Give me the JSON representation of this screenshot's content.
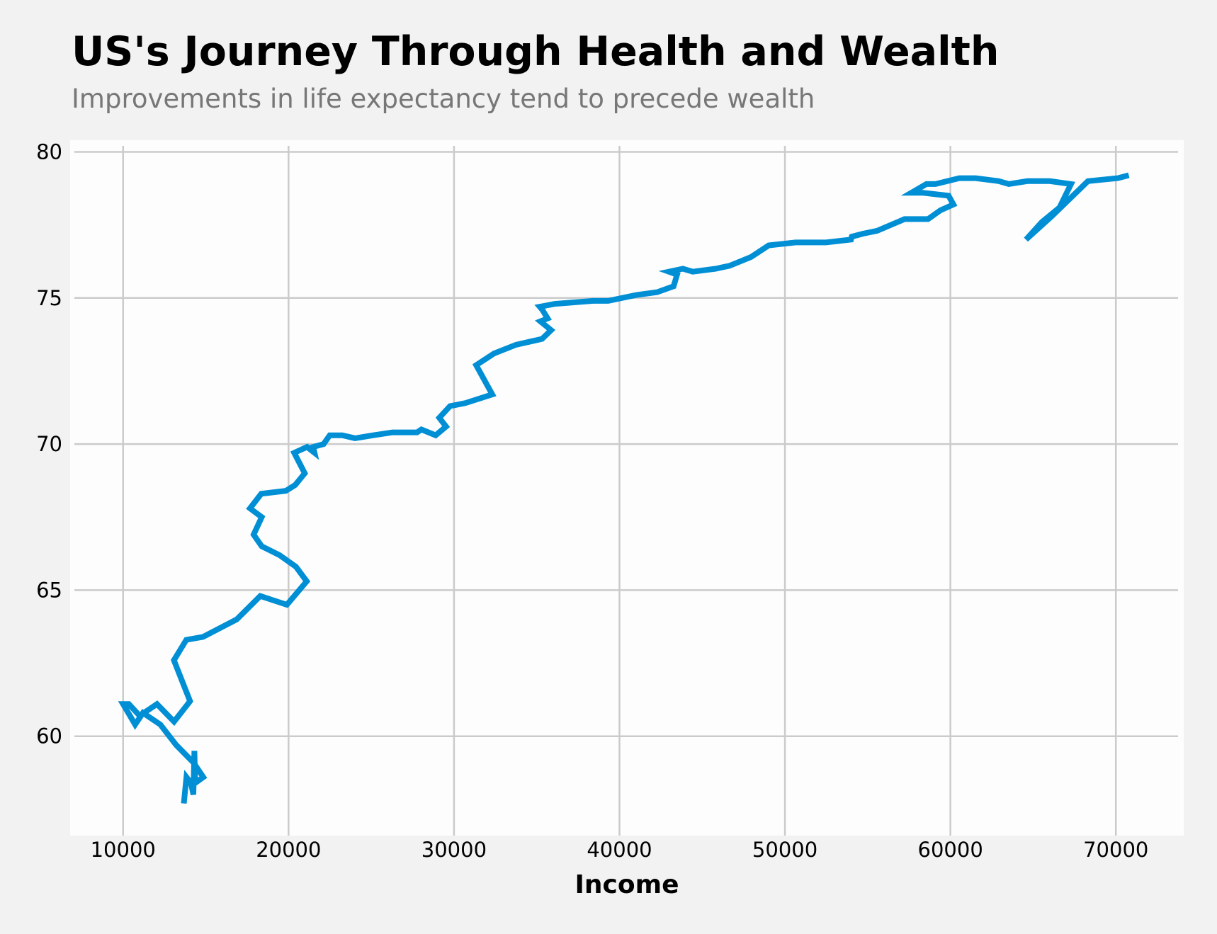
{
  "chart_data": {
    "type": "line",
    "title": "US's Journey Through Health and Wealth",
    "subtitle": "Improvements in life expectancy tend to precede wealth",
    "xlabel": "Income",
    "ylabel": "",
    "xlim": [
      6800,
      74100
    ],
    "ylim": [
      56.6,
      80.4
    ],
    "xticks": [
      10000,
      20000,
      30000,
      40000,
      50000,
      60000,
      70000
    ],
    "yticks": [
      60,
      65,
      70,
      75,
      80
    ],
    "xtick_labels": [
      "10000",
      "20000",
      "30000",
      "40000",
      "50000",
      "60000",
      "70000"
    ],
    "ytick_labels": [
      "60",
      "65",
      "70",
      "75",
      "80"
    ],
    "grid": true,
    "legend": "none",
    "colors": {
      "line": "#008fd5",
      "plot_background": "#fdfdfd",
      "figure_background": "#f2f2f2",
      "grid": "#cbcbcb"
    },
    "series": [
      {
        "x": [
          13670,
          13830,
          14100,
          14250,
          14310,
          14360,
          14850,
          14250,
          13210,
          12250,
          11200,
          10730,
          10000,
          10350,
          11000,
          12050,
          13080,
          14050,
          13070,
          13820,
          14830,
          16870,
          18290,
          19900,
          21100,
          20450,
          19450,
          18380,
          17890,
          18380,
          17670,
          18350,
          19840,
          20400,
          20980,
          20340,
          21120,
          21570,
          21490,
          22120,
          22490,
          23250,
          24020,
          25120,
          26290,
          27770,
          28030,
          28890,
          29520,
          29110,
          29760,
          30680,
          32310,
          31340,
          32420,
          33760,
          35320,
          35870,
          35220,
          35660,
          35330,
          35180,
          36100,
          38400,
          39320,
          41000,
          42280,
          43270,
          43480,
          42990,
          43830,
          44430,
          45810,
          46640,
          47950,
          49020,
          50640,
          52480,
          53990,
          54040,
          54720,
          55570,
          57230,
          58650,
          59400,
          60180,
          59890,
          58340,
          57640,
          58550,
          59100,
          60540,
          61520,
          62920,
          63530,
          64650,
          66010,
          67290,
          66600,
          65530,
          64570,
          66130,
          68310,
          70120,
          70780
        ],
        "y": [
          57.7,
          58.6,
          58.4,
          58.0,
          59.5,
          58.4,
          58.6,
          59.1,
          59.7,
          60.4,
          60.8,
          60.4,
          61.1,
          61.1,
          60.7,
          61.1,
          60.5,
          61.2,
          62.6,
          63.3,
          63.4,
          64.0,
          64.8,
          64.5,
          65.3,
          65.8,
          66.2,
          66.5,
          66.9,
          67.5,
          67.8,
          68.3,
          68.4,
          68.6,
          69.0,
          69.7,
          69.9,
          69.7,
          69.9,
          70.0,
          70.3,
          70.3,
          70.2,
          70.3,
          70.4,
          70.4,
          70.5,
          70.3,
          70.6,
          70.9,
          71.3,
          71.4,
          71.7,
          72.7,
          73.1,
          73.4,
          73.6,
          73.9,
          74.2,
          74.3,
          74.6,
          74.7,
          74.8,
          74.9,
          74.9,
          75.1,
          75.2,
          75.4,
          75.8,
          75.9,
          76.0,
          75.9,
          76.0,
          76.1,
          76.4,
          76.8,
          76.9,
          76.9,
          77.0,
          77.1,
          77.2,
          77.3,
          77.7,
          77.7,
          78.0,
          78.2,
          78.5,
          78.6,
          78.6,
          78.9,
          78.9,
          79.1,
          79.1,
          79.0,
          78.9,
          79.0,
          79.0,
          78.9,
          78.1,
          77.6,
          77.0,
          77.8,
          79.0,
          79.1,
          79.2
        ]
      }
    ]
  }
}
